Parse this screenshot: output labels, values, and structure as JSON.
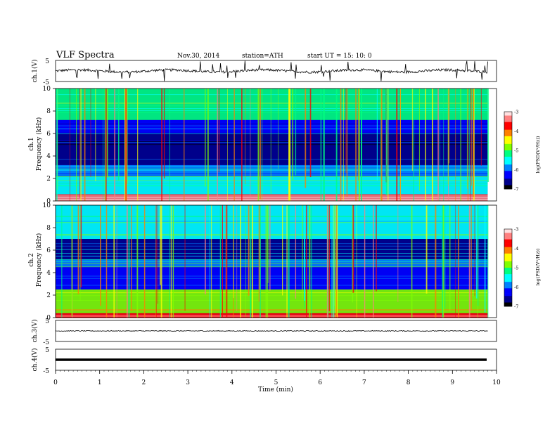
{
  "header": {
    "title": "VLF  Spectra",
    "date": "Nov.30, 2014",
    "station": "station=ATH",
    "start": "start  UT  =    15: 10: 0"
  },
  "colors": {
    "colormap": [
      "#000000",
      "#00008b",
      "#0000ff",
      "#0080ff",
      "#00ffff",
      "#00ff80",
      "#80ff00",
      "#ffff00",
      "#ff8000",
      "#ff0000",
      "#ff8080",
      "#ffe0e0"
    ]
  },
  "chart_data": [
    {
      "type": "line",
      "panel": "ch.1 waveform",
      "ylabel": "ch.1(V)",
      "ylim": [
        -5,
        5
      ],
      "yticks": [
        5,
        -5
      ],
      "xlim": [
        0,
        10
      ],
      "baseline": 0,
      "note_spikes": true
    },
    {
      "type": "heatmap",
      "panel": "ch.1 spectrogram",
      "ylabel": "Frequency  (kHz)",
      "channel_label": "ch.1",
      "ylim": [
        0,
        10
      ],
      "yticks": [
        0,
        2,
        4,
        6,
        8,
        10
      ],
      "xlim": [
        0,
        9.8
      ],
      "colorbar": {
        "label": "log(PSD(V²/Hz))",
        "range": [
          -7,
          -3
        ],
        "ticks": [
          -3,
          -4,
          -5,
          -6,
          -7
        ]
      },
      "bands_khz": [
        {
          "from": 0.0,
          "to": 0.6,
          "level": -3.4
        },
        {
          "from": 0.6,
          "to": 2.2,
          "level": -5.4
        },
        {
          "from": 2.2,
          "to": 3.2,
          "level": -5.9
        },
        {
          "from": 3.2,
          "to": 6.0,
          "level": -6.7
        },
        {
          "from": 6.0,
          "to": 7.2,
          "level": -6.4
        },
        {
          "from": 7.2,
          "to": 10.0,
          "level": -5.2
        }
      ]
    },
    {
      "type": "heatmap",
      "panel": "ch.2 spectrogram",
      "ylabel": "Frequency  (kHz)",
      "channel_label": "ch.2",
      "ylim": [
        0,
        10
      ],
      "yticks": [
        0,
        2,
        4,
        6,
        8,
        10
      ],
      "xlim": [
        0,
        9.8
      ],
      "colorbar": {
        "label": "log(PSD(V²/Hz))",
        "range": [
          -7,
          -3
        ],
        "ticks": [
          -3,
          -4,
          -5,
          -6,
          -7
        ]
      },
      "bands_khz": [
        {
          "from": 0.0,
          "to": 0.4,
          "level": -3.6
        },
        {
          "from": 0.4,
          "to": 2.5,
          "level": -4.9
        },
        {
          "from": 2.5,
          "to": 4.5,
          "level": -6.1
        },
        {
          "from": 4.5,
          "to": 5.2,
          "level": -5.8
        },
        {
          "from": 5.2,
          "to": 7.0,
          "level": -6.5
        },
        {
          "from": 7.0,
          "to": 10.0,
          "level": -5.4
        }
      ]
    },
    {
      "type": "line",
      "panel": "ch.3 waveform",
      "ylabel": "ch.3(V)",
      "ylim": [
        -5,
        5
      ],
      "yticks": [
        5,
        -5
      ],
      "xlim": [
        0,
        10
      ],
      "baseline": 0
    },
    {
      "type": "line",
      "panel": "ch.4 waveform",
      "ylabel": "ch.4(V)",
      "ylim": [
        -5,
        5
      ],
      "yticks": [
        5,
        -5
      ],
      "xlim": [
        0,
        10
      ],
      "baseline": 0
    }
  ],
  "xaxis": {
    "label": "Time  (min)",
    "ticks": [
      0,
      1,
      2,
      3,
      4,
      5,
      6,
      7,
      8,
      9,
      10
    ]
  }
}
